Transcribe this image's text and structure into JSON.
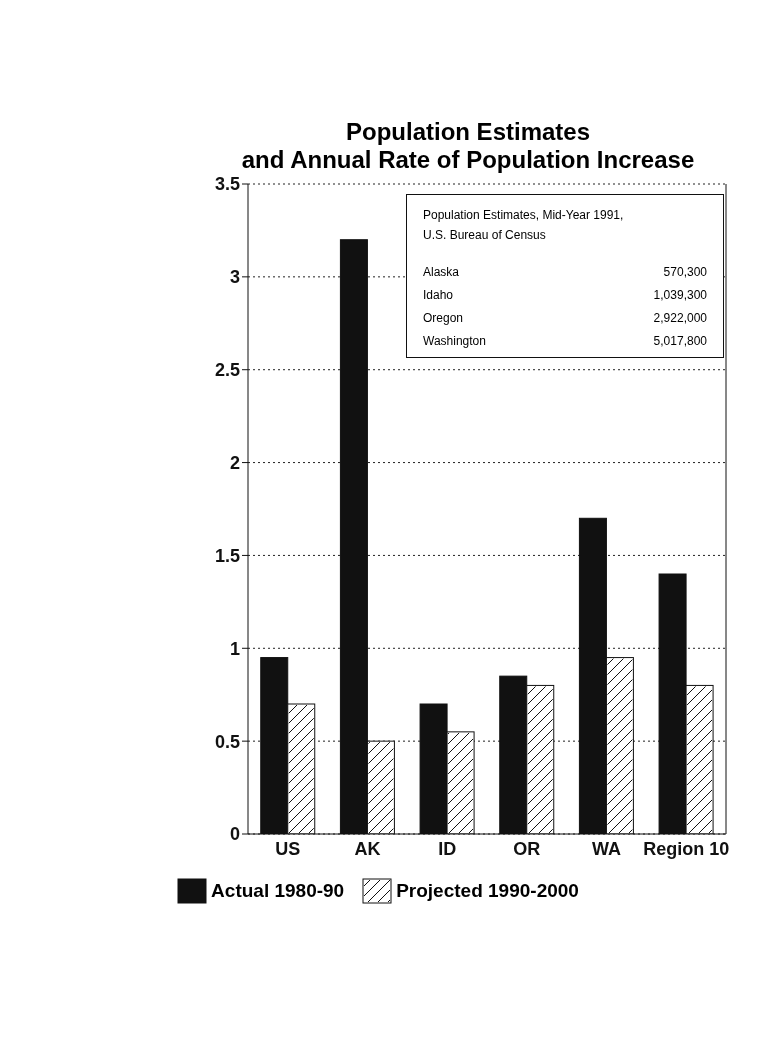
{
  "chart_data": {
    "type": "bar",
    "title": "Population Estimates\nand Annual Rate of Population Increase",
    "categories": [
      "US",
      "AK",
      "ID",
      "OR",
      "WA",
      "Region 10"
    ],
    "series": [
      {
        "name": "Actual 1980-90",
        "color": "#111111",
        "values": [
          0.95,
          3.2,
          0.7,
          0.85,
          1.7,
          1.4
        ]
      },
      {
        "name": "Projected 1990-2000",
        "color": "#ffffff",
        "values": [
          0.7,
          0.5,
          0.55,
          0.8,
          0.95,
          0.8
        ]
      }
    ],
    "ylim": [
      0,
      3.5
    ],
    "yticks": [
      0,
      0.5,
      1,
      1.5,
      2,
      2.5,
      3,
      3.5
    ],
    "grid": "y",
    "legend": "bottom",
    "annotations": [
      "Population Estimates, Mid-Year 1991,\nU.S. Bureau of Census",
      "Alaska",
      "570,300",
      "Idaho",
      "1,039,300",
      "Oregon",
      "2,922,000",
      "Washington",
      "5,017,800"
    ]
  }
}
